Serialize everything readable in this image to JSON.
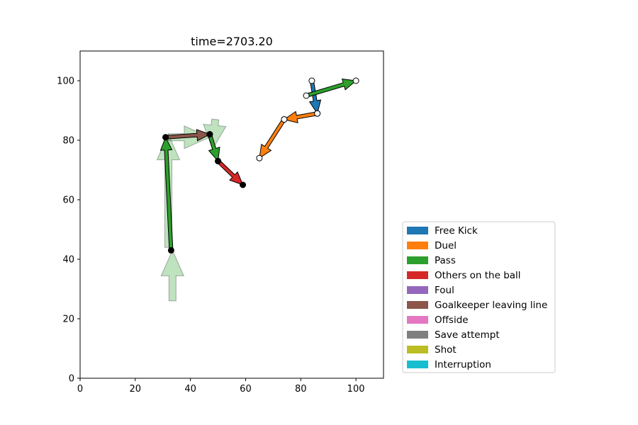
{
  "chart_data": {
    "type": "scatter",
    "title": "time=2703.20",
    "xlabel": "",
    "ylabel": "",
    "xlim": [
      0,
      110
    ],
    "ylim": [
      0,
      110
    ],
    "xticks": [
      0,
      20,
      40,
      60,
      80,
      100
    ],
    "yticks": [
      0,
      20,
      40,
      60,
      80,
      100
    ],
    "grid": false,
    "legend_position": "lower-right-outside",
    "legend": [
      {
        "label": "Free Kick",
        "color": "#1f77b4"
      },
      {
        "label": "Duel",
        "color": "#ff7f0e"
      },
      {
        "label": "Pass",
        "color": "#2ca02c"
      },
      {
        "label": "Others on the ball",
        "color": "#d62728"
      },
      {
        "label": "Foul",
        "color": "#9467bd"
      },
      {
        "label": "Goalkeeper leaving line",
        "color": "#8c564b"
      },
      {
        "label": "Offside",
        "color": "#e377c2"
      },
      {
        "label": "Save attempt",
        "color": "#7f7f7f"
      },
      {
        "label": "Shot",
        "color": "#bcbd22"
      },
      {
        "label": "Interruption",
        "color": "#17becf"
      }
    ],
    "team_filled_events": [
      {
        "type": "Pass",
        "x0": 33,
        "y0": 43,
        "x1": 31,
        "y1": 81,
        "color": "#2ca02c"
      },
      {
        "type": "Goalkeeper leaving line",
        "x0": 31,
        "y0": 81,
        "x1": 47,
        "y1": 82,
        "color": "#8c564b"
      },
      {
        "type": "Pass",
        "x0": 47,
        "y0": 82,
        "x1": 50,
        "y1": 73,
        "color": "#2ca02c"
      },
      {
        "type": "Others on the ball",
        "x0": 50,
        "y0": 73,
        "x1": 59,
        "y1": 65,
        "color": "#d62728"
      }
    ],
    "team_hollow_events": [
      {
        "type": "Free Kick",
        "x0": 84,
        "y0": 100,
        "x1": 86,
        "y1": 89,
        "color": "#1f77b4"
      },
      {
        "type": "Pass",
        "x0": 82,
        "y0": 95,
        "x1": 100,
        "y1": 100,
        "color": "#2ca02c"
      },
      {
        "type": "Duel",
        "x0": 86,
        "y0": 89,
        "x1": 74,
        "y1": 87,
        "color": "#ff7f0e"
      },
      {
        "type": "Duel",
        "x0": 74,
        "y0": 87,
        "x1": 65,
        "y1": 74,
        "color": "#ff7f0e"
      }
    ],
    "faded_pass_arrows": [
      {
        "type": "Pass",
        "x0": 33.5,
        "y0": 26,
        "x1": 33.5,
        "y1": 43,
        "color": "#2ca02c"
      },
      {
        "type": "Pass",
        "x0": 32,
        "y0": 44,
        "x1": 32,
        "y1": 82,
        "color": "#2ca02c"
      },
      {
        "type": "Pass",
        "x0": 32,
        "y0": 81,
        "x1": 47,
        "y1": 81,
        "color": "#2ca02c"
      },
      {
        "type": "Pass",
        "x0": 49,
        "y0": 87,
        "x1": 48,
        "y1": 77,
        "color": "#2ca02c"
      }
    ]
  }
}
